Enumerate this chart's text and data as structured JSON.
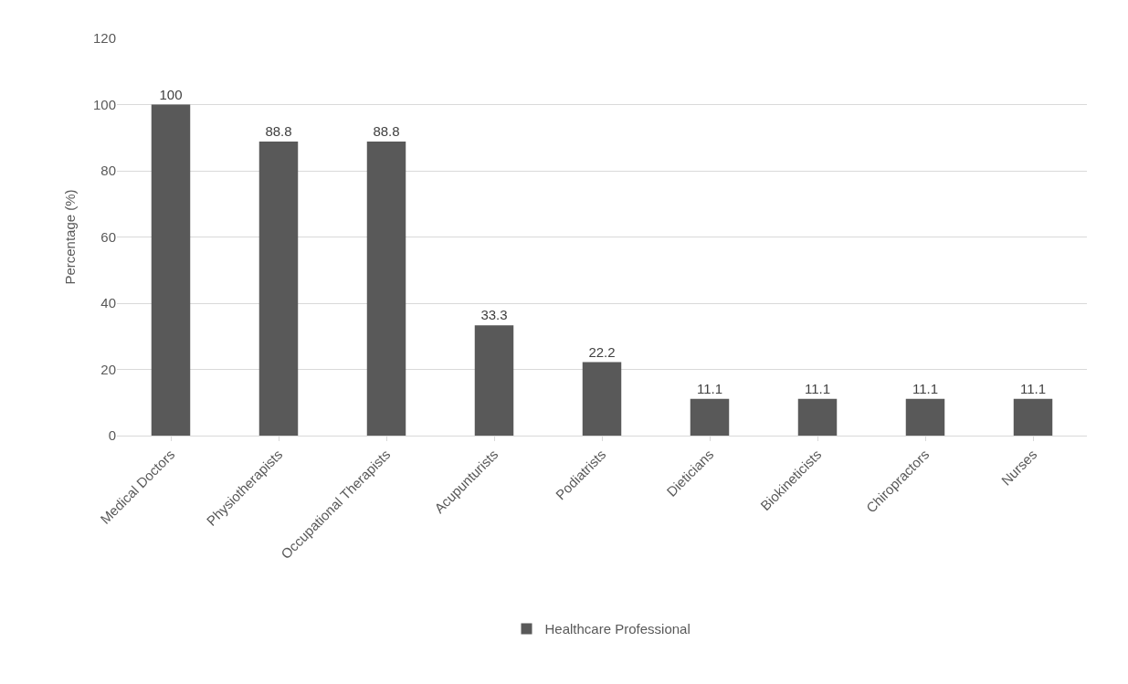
{
  "chart_data": {
    "type": "bar",
    "ylabel": "Percentage (%)",
    "categories": [
      "Medical Doctors",
      "Physiotherapists",
      "Occupational Therapists",
      "Acupunturists",
      "Podiatrists",
      "Dieticians",
      "Biokineticists",
      "Chiropractors",
      "Nurses"
    ],
    "series": [
      {
        "name": "Healthcare Professional",
        "color": "#595959",
        "values": [
          100,
          88.8,
          88.8,
          33.3,
          22.2,
          11.1,
          11.1,
          11.1,
          11.1
        ]
      }
    ],
    "ylim": [
      0,
      120
    ],
    "yticks": [
      0,
      20,
      40,
      60,
      80,
      100,
      120
    ],
    "grid": "y",
    "legend": "bottom",
    "data_labels": true
  }
}
